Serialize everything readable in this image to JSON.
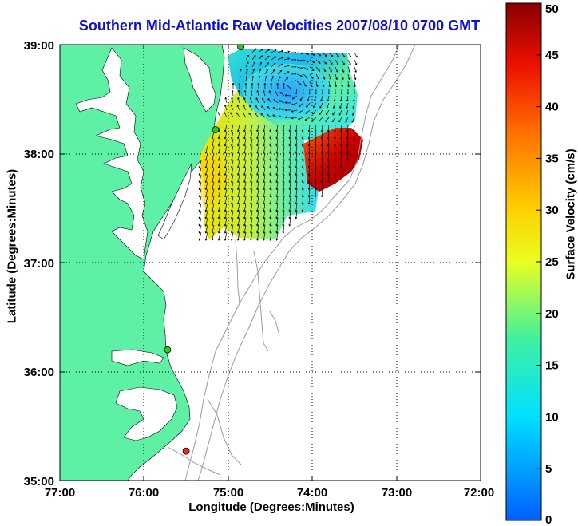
{
  "chart_data": {
    "type": "map",
    "title": "Southern Mid-Atlantic Raw Velocities 2007/08/10 0700 GMT",
    "xlabel": "Longitude (Degrees:Minutes)",
    "ylabel": "Latitude (Degrees:Minutes)",
    "xlim": [
      -77,
      -72
    ],
    "ylim": [
      35,
      39
    ],
    "xticks": [
      "77:00",
      "76:00",
      "75:00",
      "74:00",
      "73:00",
      "72:00"
    ],
    "yticks": [
      "35:00",
      "36:00",
      "37:00",
      "38:00",
      "39:00"
    ],
    "grid": true,
    "colorbar": {
      "label": "Surface Velocity (cm/s)",
      "min": 0,
      "max": 50,
      "ticks": [
        "0",
        "5",
        "10",
        "15",
        "20",
        "25",
        "30",
        "35",
        "40",
        "45",
        "50"
      ]
    },
    "stations": [
      {
        "lon": -74.85,
        "lat": 38.98,
        "color": "#22cc22"
      },
      {
        "lon": -75.15,
        "lat": 38.22,
        "color": "#22cc22"
      },
      {
        "lon": -75.72,
        "lat": 36.2,
        "color": "#22cc22"
      },
      {
        "lon": -75.5,
        "lat": 35.27,
        "color": "#ff2222"
      }
    ],
    "colors": {
      "land": "#5ef0a4",
      "contour": "#9a9a9a",
      "grid": "#000000",
      "title": "#1010d0"
    }
  }
}
